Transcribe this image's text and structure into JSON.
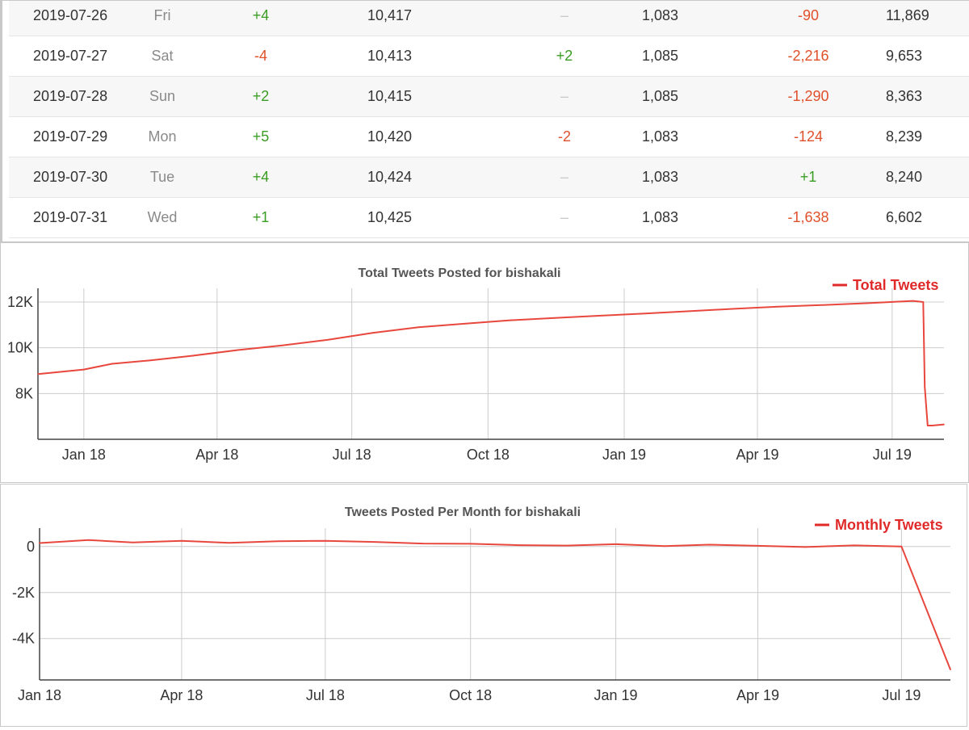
{
  "table": {
    "rows": [
      {
        "date": "2019-07-26",
        "day": "Fri",
        "tweets_change": "+4",
        "tweets_total": "10,417",
        "following_change": "–",
        "following_total": "1,083",
        "followers_change": "-90",
        "followers_total": "11,869"
      },
      {
        "date": "2019-07-27",
        "day": "Sat",
        "tweets_change": "-4",
        "tweets_total": "10,413",
        "following_change": "+2",
        "following_total": "1,085",
        "followers_change": "-2,216",
        "followers_total": "9,653"
      },
      {
        "date": "2019-07-28",
        "day": "Sun",
        "tweets_change": "+2",
        "tweets_total": "10,415",
        "following_change": "–",
        "following_total": "1,085",
        "followers_change": "-1,290",
        "followers_total": "8,363"
      },
      {
        "date": "2019-07-29",
        "day": "Mon",
        "tweets_change": "+5",
        "tweets_total": "10,420",
        "following_change": "-2",
        "following_total": "1,083",
        "followers_change": "-124",
        "followers_total": "8,239"
      },
      {
        "date": "2019-07-30",
        "day": "Tue",
        "tweets_change": "+4",
        "tweets_total": "10,424",
        "following_change": "–",
        "following_total": "1,083",
        "followers_change": "+1",
        "followers_total": "8,240"
      },
      {
        "date": "2019-07-31",
        "day": "Wed",
        "tweets_change": "+1",
        "tweets_total": "10,425",
        "following_change": "–",
        "following_total": "1,083",
        "followers_change": "-1,638",
        "followers_total": "6,602"
      }
    ]
  },
  "colors": {
    "positive": "#3a9d23",
    "negative": "#e0502a",
    "neutral": "#c8c8c8",
    "series": "#e8473e",
    "legend": "#e02a2a",
    "grid": "#cccccc"
  },
  "chart_data": [
    {
      "type": "line",
      "title": "Total Tweets Posted for bishakali",
      "xlabel": "",
      "ylabel": "",
      "x_ticks": [
        "Jan 18",
        "Apr 18",
        "Jul 18",
        "Oct 18",
        "Jan 19",
        "Apr 19",
        "Jul 19"
      ],
      "y_ticks": [
        "8K",
        "10K",
        "12K"
      ],
      "y_tick_values": [
        8000,
        10000,
        12000
      ],
      "ylim": [
        6000,
        12600
      ],
      "xlim": [
        "2017-12-01",
        "2019-08-05"
      ],
      "grid": true,
      "legend_position": "top-right",
      "series": [
        {
          "name": "Total Tweets",
          "x": [
            "2017-12-01",
            "2018-01-01",
            "2018-01-20",
            "2018-02-15",
            "2018-03-15",
            "2018-04-15",
            "2018-05-15",
            "2018-06-15",
            "2018-07-15",
            "2018-08-15",
            "2018-09-15",
            "2018-10-15",
            "2018-11-15",
            "2018-12-15",
            "2019-01-15",
            "2019-02-15",
            "2019-03-15",
            "2019-04-15",
            "2019-05-15",
            "2019-06-15",
            "2019-07-15",
            "2019-07-22",
            "2019-07-23",
            "2019-07-25",
            "2019-07-28",
            "2019-08-05"
          ],
          "y": [
            8850,
            9050,
            9300,
            9450,
            9650,
            9900,
            10100,
            10350,
            10650,
            10900,
            11050,
            11200,
            11300,
            11400,
            11500,
            11600,
            11700,
            11800,
            11870,
            11950,
            12050,
            12000,
            8300,
            6600,
            6600,
            6650
          ]
        }
      ]
    },
    {
      "type": "line",
      "title": "Tweets Posted Per Month for bishakali",
      "xlabel": "",
      "ylabel": "",
      "x_ticks": [
        "Jan 18",
        "Apr 18",
        "Jul 18",
        "Oct 18",
        "Jan 19",
        "Apr 19",
        "Jul 19"
      ],
      "y_ticks": [
        "0",
        "-2K",
        "-4K"
      ],
      "y_tick_values": [
        0,
        -2000,
        -4000
      ],
      "ylim": [
        -5800,
        800
      ],
      "xlim": [
        "2018-01-01",
        "2019-08-01"
      ],
      "grid": true,
      "legend_position": "top-right",
      "series": [
        {
          "name": "Monthly Tweets",
          "x": [
            "2018-01-01",
            "2018-02-01",
            "2018-03-01",
            "2018-04-01",
            "2018-05-01",
            "2018-06-01",
            "2018-07-01",
            "2018-08-01",
            "2018-09-01",
            "2018-10-01",
            "2018-11-01",
            "2018-12-01",
            "2019-01-01",
            "2019-02-01",
            "2019-03-01",
            "2019-04-01",
            "2019-05-01",
            "2019-06-01",
            "2019-07-01",
            "2019-08-01"
          ],
          "y": [
            150,
            280,
            180,
            250,
            160,
            230,
            250,
            200,
            130,
            120,
            60,
            40,
            100,
            20,
            80,
            30,
            -20,
            50,
            0,
            -5350
          ]
        }
      ]
    }
  ]
}
